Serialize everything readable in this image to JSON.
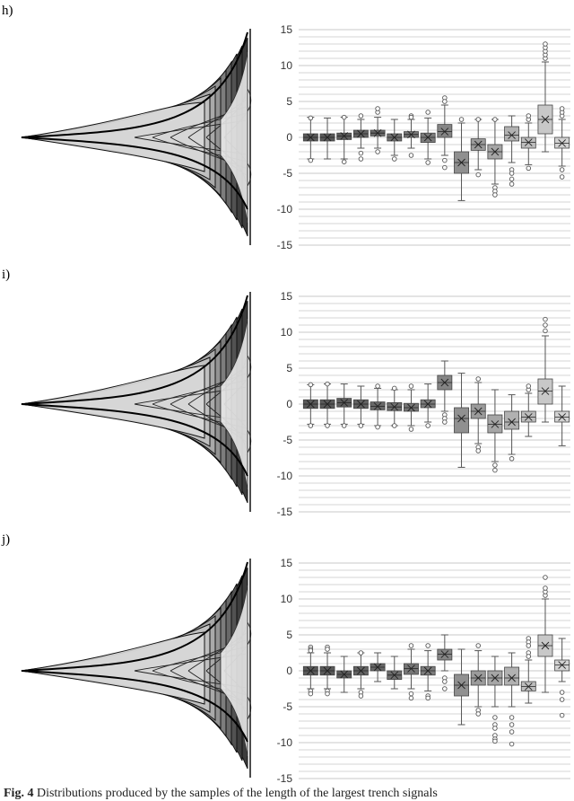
{
  "panels": [
    {
      "label": "h)"
    },
    {
      "label": "i)"
    },
    {
      "label": "j)"
    }
  ],
  "caption": {
    "fig_label": "Fig. 4",
    "text": " Distributions produced by the samples of the length of the largest trench signals"
  },
  "colors": {
    "grid": "#c8c8c8",
    "axis": "#333333",
    "whisker": "#555555",
    "shades": [
      "#5a5a5a",
      "#5a5a5a",
      "#5d5d5d",
      "#636363",
      "#686868",
      "#707070",
      "#767676",
      "#7c7c7c",
      "#858585",
      "#909090",
      "#9b9b9b",
      "#a6a6a6",
      "#b1b1b1",
      "#bdbdbd",
      "#c8c8c8",
      "#d3d3d3"
    ]
  },
  "chart_data": [
    {
      "type": "box",
      "panel": "h)",
      "ylim": [
        -15,
        15
      ],
      "y_ticks": [
        -15,
        -10,
        -5,
        0,
        5,
        10,
        15
      ],
      "boxes": [
        {
          "q1": -0.5,
          "median": 0,
          "q3": 0.5,
          "wlo": -3.0,
          "whi": 2.8,
          "mean": 0,
          "out": [
            2.7,
            -3.2
          ]
        },
        {
          "q1": -0.5,
          "median": 0,
          "q3": 0.5,
          "wlo": -3.0,
          "whi": 2.7,
          "mean": 0,
          "out": []
        },
        {
          "q1": -0.3,
          "median": 0.2,
          "q3": 0.6,
          "wlo": -3.0,
          "whi": 2.8,
          "mean": 0.2,
          "out": [
            2.8,
            -3.4
          ]
        },
        {
          "q1": 0,
          "median": 0.5,
          "q3": 1.0,
          "wlo": -1.5,
          "whi": 2.5,
          "mean": 0.5,
          "out": [
            3.0,
            -2.2,
            -3.0
          ]
        },
        {
          "q1": 0.2,
          "median": 0.6,
          "q3": 1.0,
          "wlo": -1.5,
          "whi": 2.8,
          "mean": 0.6,
          "out": [
            3.5,
            4.0,
            -2.0
          ]
        },
        {
          "q1": -0.5,
          "median": 0,
          "q3": 0.5,
          "wlo": -2.5,
          "whi": 2.5,
          "mean": 0,
          "out": [
            -3.0
          ]
        },
        {
          "q1": 0,
          "median": 0.4,
          "q3": 0.8,
          "wlo": -1.5,
          "whi": 2.5,
          "mean": 0.4,
          "out": [
            3.0,
            2.8,
            -2.5
          ]
        },
        {
          "q1": -0.7,
          "median": 0,
          "q3": 0.6,
          "wlo": -3.0,
          "whi": 2.7,
          "mean": 0,
          "out": [
            3.5,
            -3.5
          ]
        },
        {
          "q1": 0,
          "median": 0.8,
          "q3": 1.8,
          "wlo": -2.5,
          "whi": 4.5,
          "mean": 0.8,
          "out": [
            5.5,
            5.0,
            -3.2,
            -4.2
          ]
        },
        {
          "q1": -5.0,
          "median": -3.5,
          "q3": -2.0,
          "wlo": -8.8,
          "whi": 2.0,
          "mean": -3.5,
          "out": [
            2.5
          ]
        },
        {
          "q1": -1.8,
          "median": -1.0,
          "q3": -0.2,
          "wlo": -4.5,
          "whi": 2.5,
          "mean": -1.0,
          "out": [
            2.5,
            -5.2
          ]
        },
        {
          "q1": -3.0,
          "median": -2.0,
          "q3": -1.0,
          "wlo": -6.5,
          "whi": 2.5,
          "mean": -2.0,
          "out": [
            2.5,
            -7.0,
            -7.5,
            -8.0
          ]
        },
        {
          "q1": -0.5,
          "median": 0.3,
          "q3": 1.5,
          "wlo": -3.5,
          "whi": 3.0,
          "mean": 0.3,
          "out": [
            -4.5,
            -5.0,
            -5.8,
            -6.5
          ]
        },
        {
          "q1": -1.5,
          "median": -0.7,
          "q3": 0,
          "wlo": -3.8,
          "whi": 2.0,
          "mean": -0.7,
          "out": [
            2.5,
            3.0,
            -4.3
          ]
        },
        {
          "q1": 0.5,
          "median": 2.5,
          "q3": 4.5,
          "wlo": -2.0,
          "whi": 10.5,
          "mean": 2.5,
          "out": [
            11.0,
            11.5,
            12.0,
            12.5,
            13.0
          ]
        },
        {
          "q1": -1.5,
          "median": -0.8,
          "q3": 0,
          "wlo": -4.0,
          "whi": 2.5,
          "mean": -0.8,
          "out": [
            3.0,
            3.5,
            4.0,
            -4.5,
            -5.5
          ]
        }
      ]
    },
    {
      "type": "box",
      "panel": "i)",
      "ylim": [
        -15,
        15
      ],
      "y_ticks": [
        -15,
        -10,
        -5,
        0,
        5,
        10,
        15
      ],
      "boxes": [
        {
          "q1": -0.6,
          "median": 0,
          "q3": 0.6,
          "wlo": -2.8,
          "whi": 2.7,
          "mean": 0,
          "out": [
            2.7,
            -3.0
          ]
        },
        {
          "q1": -0.6,
          "median": 0,
          "q3": 0.6,
          "wlo": -2.8,
          "whi": 2.8,
          "mean": 0,
          "out": [
            2.8,
            -3.0
          ]
        },
        {
          "q1": -0.4,
          "median": 0.2,
          "q3": 0.8,
          "wlo": -2.8,
          "whi": 2.8,
          "mean": 0.2,
          "out": [
            -3.0
          ]
        },
        {
          "q1": -0.6,
          "median": 0,
          "q3": 0.6,
          "wlo": -2.8,
          "whi": 2.5,
          "mean": 0,
          "out": [
            -3.0
          ]
        },
        {
          "q1": -0.8,
          "median": -0.3,
          "q3": 0.3,
          "wlo": -3.0,
          "whi": 2.2,
          "mean": -0.3,
          "out": [
            2.5,
            -3.2
          ]
        },
        {
          "q1": -0.9,
          "median": -0.4,
          "q3": 0.2,
          "wlo": -3.0,
          "whi": 2.0,
          "mean": -0.4,
          "out": [
            2.2,
            -3.0
          ]
        },
        {
          "q1": -1.0,
          "median": -0.5,
          "q3": 0.1,
          "wlo": -3.0,
          "whi": 2.0,
          "mean": -0.5,
          "out": [
            2.5,
            -3.5
          ]
        },
        {
          "q1": -0.5,
          "median": 0,
          "q3": 0.6,
          "wlo": -2.5,
          "whi": 2.8,
          "mean": 0,
          "out": [
            -3.0
          ]
        },
        {
          "q1": 2.0,
          "median": 3.0,
          "q3": 4.0,
          "wlo": -1.0,
          "whi": 6.0,
          "mean": 3.0,
          "out": [
            -1.5,
            -2.0,
            -2.5
          ]
        },
        {
          "q1": -4.0,
          "median": -2.0,
          "q3": -0.5,
          "wlo": -8.8,
          "whi": 4.3,
          "mean": -2.0,
          "out": []
        },
        {
          "q1": -2.0,
          "median": -1.0,
          "q3": 0,
          "wlo": -5.5,
          "whi": 3.0,
          "mean": -1.0,
          "out": [
            3.5,
            -6.0,
            -6.5
          ]
        },
        {
          "q1": -4.0,
          "median": -2.8,
          "q3": -1.5,
          "wlo": -8.0,
          "whi": 2.0,
          "mean": -2.8,
          "out": [
            -8.5,
            -9.2
          ]
        },
        {
          "q1": -3.5,
          "median": -2.5,
          "q3": -1.0,
          "wlo": -7.0,
          "whi": 1.3,
          "mean": -2.5,
          "out": [
            -7.6
          ]
        },
        {
          "q1": -2.5,
          "median": -1.8,
          "q3": -1.0,
          "wlo": -4.5,
          "whi": 1.5,
          "mean": -1.8,
          "out": [
            2.0,
            2.5
          ]
        },
        {
          "q1": 0,
          "median": 1.8,
          "q3": 3.5,
          "wlo": -2.5,
          "whi": 9.5,
          "mean": 1.8,
          "out": [
            10.2,
            11.0,
            11.8
          ]
        },
        {
          "q1": -2.5,
          "median": -1.8,
          "q3": -1.0,
          "wlo": -5.8,
          "whi": 2.5,
          "mean": -1.8,
          "out": []
        }
      ]
    },
    {
      "type": "box",
      "panel": "j)",
      "ylim": [
        -15,
        15
      ],
      "y_ticks": [
        -15,
        -10,
        -5,
        0,
        5,
        10,
        15
      ],
      "boxes": [
        {
          "q1": -0.6,
          "median": 0,
          "q3": 0.6,
          "wlo": -2.5,
          "whi": 2.5,
          "mean": 0,
          "out": [
            3.3,
            3.0,
            2.8,
            -2.8,
            -3.2
          ]
        },
        {
          "q1": -0.6,
          "median": 0,
          "q3": 0.6,
          "wlo": -2.5,
          "whi": 2.5,
          "mean": 0,
          "out": [
            3.3,
            3.0,
            -2.8,
            -3.2
          ]
        },
        {
          "q1": -1.0,
          "median": -0.5,
          "q3": 0,
          "wlo": -3.0,
          "whi": 2.0,
          "mean": -0.5,
          "out": []
        },
        {
          "q1": -0.6,
          "median": 0,
          "q3": 0.6,
          "wlo": -2.5,
          "whi": 2.5,
          "mean": 0,
          "out": [
            2.5,
            -3.0,
            -3.5
          ]
        },
        {
          "q1": 0,
          "median": 0.5,
          "q3": 1.0,
          "wlo": -1.5,
          "whi": 2.5,
          "mean": 0.5,
          "out": []
        },
        {
          "q1": -1.2,
          "median": -0.6,
          "q3": 0,
          "wlo": -2.5,
          "whi": 2.0,
          "mean": -0.6,
          "out": []
        },
        {
          "q1": -0.5,
          "median": 0.3,
          "q3": 1.0,
          "wlo": -2.5,
          "whi": 3.0,
          "mean": 0.3,
          "out": [
            3.5,
            -3.2,
            -3.8
          ]
        },
        {
          "q1": -0.6,
          "median": 0,
          "q3": 0.6,
          "wlo": -2.8,
          "whi": 2.8,
          "mean": 0,
          "out": [
            3.5,
            -3.5,
            -3.8
          ]
        },
        {
          "q1": 1.5,
          "median": 2.3,
          "q3": 3.0,
          "wlo": 0,
          "whi": 5.0,
          "mean": 2.3,
          "out": [
            -1.0,
            -1.5,
            -2.5
          ]
        },
        {
          "q1": -3.5,
          "median": -2.0,
          "q3": -0.5,
          "wlo": -7.5,
          "whi": 3.0,
          "mean": -2.0,
          "out": []
        },
        {
          "q1": -2.0,
          "median": -1.0,
          "q3": 0,
          "wlo": -5.0,
          "whi": 2.8,
          "mean": -1.0,
          "out": [
            3.5,
            -5.5,
            -6.0
          ]
        },
        {
          "q1": -2.0,
          "median": -1.0,
          "q3": 0,
          "wlo": -5.0,
          "whi": 2.0,
          "mean": -1.0,
          "out": [
            -6.5,
            -7.5,
            -8.0,
            -9.0,
            -9.5,
            -9.8
          ]
        },
        {
          "q1": -2.0,
          "median": -1.0,
          "q3": 0.5,
          "wlo": -5.0,
          "whi": 2.5,
          "mean": -1.0,
          "out": [
            -6.5,
            -7.5,
            -8.5,
            -10.2
          ]
        },
        {
          "q1": -2.8,
          "median": -2.2,
          "q3": -1.5,
          "wlo": -4.5,
          "whi": 1.5,
          "mean": -2.2,
          "out": [
            4.5,
            4.0,
            3.5,
            2.5,
            2.0
          ]
        },
        {
          "q1": 2.0,
          "median": 3.5,
          "q3": 5.0,
          "wlo": -3.0,
          "whi": 10.0,
          "mean": 3.5,
          "out": [
            10.5,
            11.0,
            11.5,
            13.0
          ]
        },
        {
          "q1": 0,
          "median": 0.8,
          "q3": 1.5,
          "wlo": -1.5,
          "whi": 4.5,
          "mean": 0.8,
          "out": [
            -3.0,
            -4.0,
            -6.2
          ]
        }
      ]
    }
  ]
}
